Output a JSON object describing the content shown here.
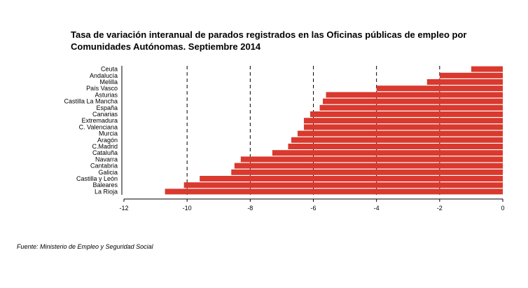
{
  "chart_data": {
    "type": "bar",
    "orientation": "horizontal",
    "title": "Tasa de variación interanual de parados registrados en las Oficinas públicas de empleo por Comunidades Autónomas.  Septiembre 2014",
    "source": "Fuente: Ministerio de Empleo y Seguridad Social",
    "categories": [
      "Ceuta",
      "Andalucía",
      "Melilla",
      "País Vasco",
      "Asturias",
      "Castilla La Mancha",
      "España",
      "Canarias",
      "Extremadura",
      "C. Valenciana",
      "Murcia",
      "Aragón",
      "C.Madrid",
      "Cataluña",
      "Navarra",
      "Cantabria",
      "Galicia",
      "Castilla y León",
      "Baleares",
      "La Rioja"
    ],
    "values": [
      -1.0,
      -2.0,
      -2.4,
      -4.0,
      -5.6,
      -5.7,
      -5.8,
      -6.1,
      -6.3,
      -6.3,
      -6.5,
      -6.7,
      -6.8,
      -7.3,
      -8.3,
      -8.5,
      -8.6,
      -9.6,
      -10.1,
      -10.7
    ],
    "xlim": [
      -12,
      0
    ],
    "xticks": [
      "-12",
      "-10",
      "-8",
      "-6",
      "-4",
      "-2",
      "0"
    ],
    "xlabel": "",
    "ylabel": "",
    "grid": "dashed vertical lines at -10, -8, -6, -4, -2",
    "bar_color": "#d9392e"
  }
}
